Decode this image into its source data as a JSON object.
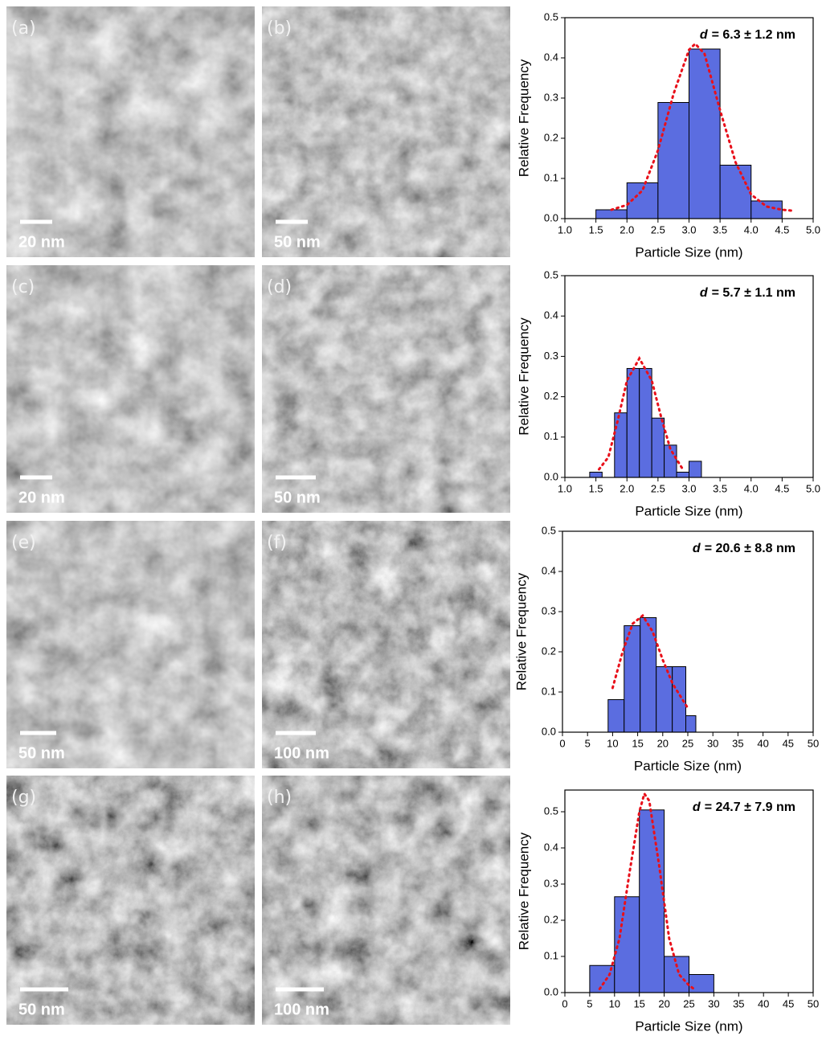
{
  "images": [
    {
      "label": "(a)",
      "scale_bar": "20 nm"
    },
    {
      "label": "(b)",
      "scale_bar": "50 nm"
    },
    {
      "label": "(c)",
      "scale_bar": "20 nm"
    },
    {
      "label": "(d)",
      "scale_bar": "50 nm"
    },
    {
      "label": "(e)",
      "scale_bar": "50 nm"
    },
    {
      "label": "(f)",
      "scale_bar": "100 nm"
    },
    {
      "label": "(g)",
      "scale_bar": "50 nm"
    },
    {
      "label": "(h)",
      "scale_bar": "100 nm"
    }
  ],
  "chart_data": [
    {
      "type": "histogram",
      "x_label": "Particle Size (nm)",
      "y_label": "Relative Frequency",
      "annotation": {
        "symbol": "d",
        "text": "= 6.3 ± 1.2 nm"
      },
      "color": "#5b6de0",
      "bins": [
        1.5,
        2.0,
        2.5,
        3.0,
        3.5,
        4.0,
        4.5
      ],
      "values": [
        0.022,
        0.089,
        0.289,
        0.422,
        0.133,
        0.044
      ],
      "fit": {
        "color": "#e8101a",
        "x": [
          1.75,
          2.0,
          2.25,
          2.5,
          2.75,
          3.0,
          3.1,
          3.25,
          3.5,
          3.75,
          4.0,
          4.25,
          4.5,
          4.65
        ],
        "values": [
          0.022,
          0.034,
          0.07,
          0.17,
          0.31,
          0.42,
          0.435,
          0.41,
          0.27,
          0.14,
          0.06,
          0.03,
          0.022,
          0.02
        ]
      },
      "xlim": [
        1.0,
        5.0
      ],
      "xticks": [
        {
          "value": 1,
          "label": "1.0"
        },
        1.5,
        {
          "value": 2,
          "label": "2.0"
        },
        2.5,
        {
          "value": 3,
          "label": "3.0"
        },
        3.5,
        {
          "value": 4,
          "label": "4.0"
        },
        4.5,
        {
          "value": 5,
          "label": "5.0"
        }
      ],
      "ylim": [
        0,
        0.5
      ],
      "yticks": [
        {
          "value": 0,
          "label": "0.0"
        },
        0.1,
        0.2,
        0.3,
        0.4,
        0.5
      ]
    },
    {
      "type": "histogram",
      "x_label": "Particle Size (nm)",
      "y_label": "Relative Frequency",
      "annotation": {
        "symbol": "d",
        "text": "= 5.7 ± 1.1 nm"
      },
      "color": "#5b6de0",
      "bins": [
        1.4,
        1.6,
        1.8,
        2.0,
        2.2,
        2.4,
        2.6,
        2.8,
        3.0,
        3.2
      ],
      "values": [
        0.013,
        0,
        0.16,
        0.27,
        0.27,
        0.147,
        0.08,
        0.013,
        0.04
      ],
      "fit": {
        "color": "#e8101a",
        "x": [
          1.55,
          1.7,
          1.85,
          2.0,
          2.2,
          2.4,
          2.55,
          2.7,
          2.9
        ],
        "values": [
          0.02,
          0.05,
          0.14,
          0.24,
          0.295,
          0.24,
          0.15,
          0.07,
          0.02
        ]
      },
      "xlim": [
        1.0,
        5.0
      ],
      "xticks": [
        {
          "value": 1,
          "label": "1.0"
        },
        1.5,
        {
          "value": 2,
          "label": "2.0"
        },
        2.5,
        {
          "value": 3,
          "label": "3.0"
        },
        3.5,
        {
          "value": 4,
          "label": "4.0"
        },
        4.5,
        {
          "value": 5,
          "label": "5.0"
        }
      ],
      "ylim": [
        0,
        0.5
      ],
      "yticks": [
        {
          "value": 0,
          "label": "0.0"
        },
        0.1,
        0.2,
        0.3,
        0.4,
        0.5
      ]
    },
    {
      "type": "histogram",
      "x_label": "Particle Size (nm)",
      "y_label": "Relative Frequency",
      "annotation": {
        "symbol": "d",
        "text": "= 20.6 ± 8.8 nm"
      },
      "color": "#5b6de0",
      "bins": [
        9.1,
        12.3,
        15.5,
        18.7,
        21.9,
        24.6,
        26.6
      ],
      "values": [
        0.081,
        0.265,
        0.285,
        0.163,
        0.163,
        0.041
      ],
      "fit": {
        "color": "#e8101a",
        "x": [
          10,
          12,
          14,
          16,
          18,
          20,
          22,
          24,
          25
        ],
        "values": [
          0.11,
          0.2,
          0.27,
          0.29,
          0.25,
          0.18,
          0.12,
          0.08,
          0.06
        ]
      },
      "xlim": [
        0,
        50
      ],
      "xticks": [
        0,
        5,
        10,
        15,
        20,
        25,
        30,
        35,
        40,
        45,
        50
      ],
      "ylim": [
        0,
        0.5
      ],
      "yticks": [
        {
          "value": 0,
          "label": "0.0"
        },
        0.1,
        0.2,
        0.3,
        0.4,
        0.5
      ]
    },
    {
      "type": "histogram",
      "x_label": "Particle Size (nm)",
      "y_label": "Relative Frequency",
      "annotation": {
        "symbol": "d",
        "text": "= 24.7 ± 7.9 nm"
      },
      "color": "#5b6de0",
      "bins": [
        5,
        10,
        15,
        20,
        25,
        30
      ],
      "values": [
        0.075,
        0.265,
        0.505,
        0.1,
        0.05
      ],
      "fit": {
        "color": "#e8101a",
        "x": [
          7,
          9,
          11,
          13,
          15,
          16,
          17,
          19,
          21,
          23,
          25,
          26
        ],
        "values": [
          0.01,
          0.05,
          0.15,
          0.33,
          0.5,
          0.55,
          0.53,
          0.35,
          0.15,
          0.05,
          0.02,
          0.01
        ]
      },
      "xlim": [
        0,
        50
      ],
      "xticks": [
        0,
        5,
        10,
        15,
        20,
        25,
        30,
        35,
        40,
        45,
        50
      ],
      "ylim": [
        0,
        0.56
      ],
      "yticks": [
        {
          "value": 0,
          "label": "0.0"
        },
        0.1,
        0.2,
        0.3,
        0.4,
        0.5
      ]
    }
  ]
}
